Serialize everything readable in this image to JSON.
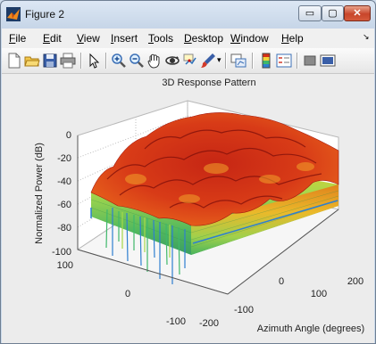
{
  "window": {
    "title": "Figure 2"
  },
  "caption_buttons": {
    "minimize": "▭",
    "maximize": "▢",
    "close": "✕"
  },
  "menu": [
    {
      "accel": "F",
      "rest": "ile"
    },
    {
      "accel": "E",
      "rest": "dit"
    },
    {
      "accel": "V",
      "rest": "iew"
    },
    {
      "accel": "I",
      "rest": "nsert"
    },
    {
      "accel": "T",
      "rest": "ools"
    },
    {
      "accel": "D",
      "rest": "esktop"
    },
    {
      "accel": "W",
      "rest": "indow"
    },
    {
      "accel": "H",
      "rest": "elp"
    }
  ],
  "toolbar": [
    "new-figure-icon",
    "open-file-icon",
    "save-icon",
    "print-icon",
    "pointer-icon",
    "zoom-in-icon",
    "zoom-out-icon",
    "pan-icon",
    "rotate-icon",
    "data-cursor-icon",
    "brush-icon",
    "link-plot-icon",
    "colorbar-icon",
    "legend-icon",
    "hide-plot-tools-icon",
    "show-plot-tools-icon"
  ],
  "chart_data": {
    "type": "surface",
    "title": "3D Response Pattern",
    "zlabel": "Normalized Power (dB)",
    "xlabel": "Azimuth Angle (degrees)",
    "ylabel": "",
    "z_ticks": [
      "0",
      "-20",
      "-40",
      "-60",
      "-80",
      "-100"
    ],
    "z_range": [
      -100,
      0
    ],
    "y_ticks": [
      "100",
      "0",
      "-100"
    ],
    "y_range": [
      -100,
      100
    ],
    "x_ticks": [
      "-200",
      "-100",
      "0",
      "100",
      "200"
    ],
    "x_range": [
      -200,
      200
    ],
    "grid": true,
    "colormap": [
      "#2e7fd0",
      "#3fb86b",
      "#a6d94a",
      "#f2d23a",
      "#ee8a1e",
      "#d73016",
      "#8b1010"
    ]
  }
}
